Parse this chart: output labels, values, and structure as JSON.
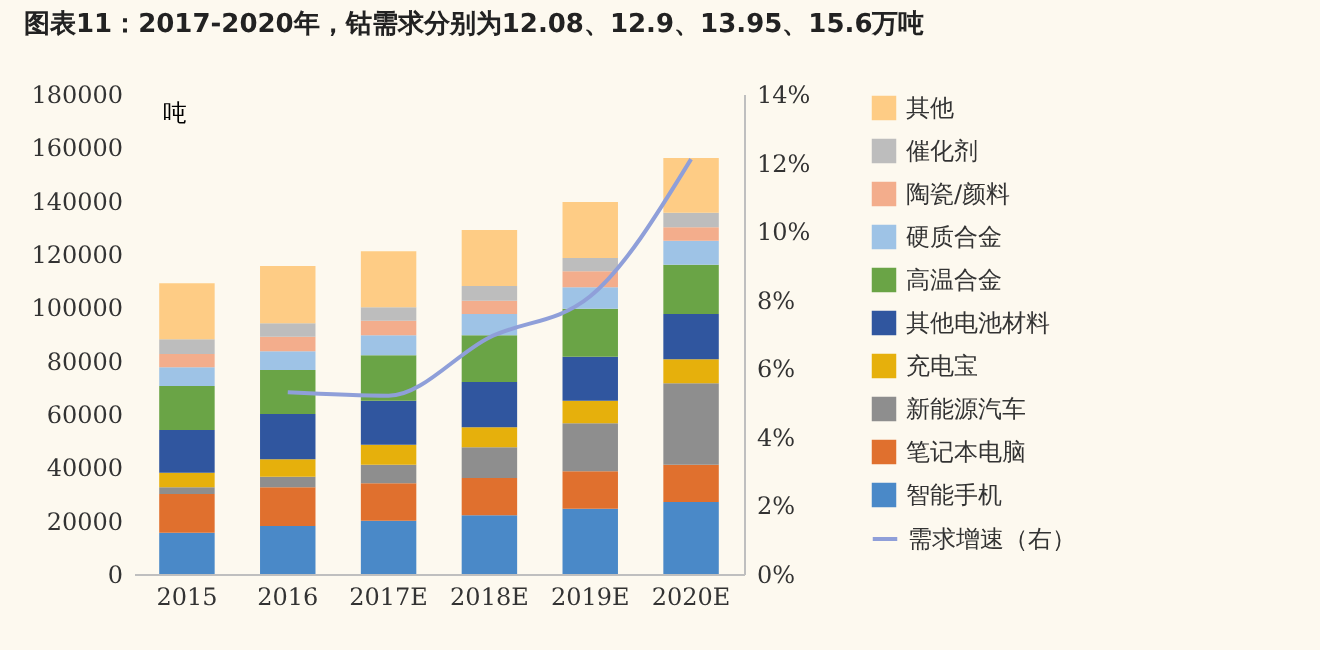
{
  "chart_data": {
    "type": "bar",
    "stacked": true,
    "title": "图表11：2017-2020年，钴需求分别为12.08、12.9、13.95、15.6万吨",
    "ylabel": "吨",
    "categories": [
      "2015",
      "2016",
      "2017E",
      "2018E",
      "2019E",
      "2020E"
    ],
    "series": [
      {
        "name": "智能手机",
        "color": "#4a89c8",
        "values": [
          15500,
          18000,
          20000,
          22000,
          24500,
          27000
        ]
      },
      {
        "name": "笔记本电脑",
        "color": "#e0702e",
        "values": [
          14500,
          14500,
          14000,
          14000,
          14000,
          14000
        ]
      },
      {
        "name": "新能源汽车",
        "color": "#8e8e8e",
        "values": [
          2500,
          4000,
          7000,
          11500,
          18000,
          30500
        ]
      },
      {
        "name": "充电宝",
        "color": "#e6b00c",
        "values": [
          5500,
          6500,
          7500,
          7500,
          8500,
          9000
        ]
      },
      {
        "name": "其他电池材料",
        "color": "#30569f",
        "values": [
          16000,
          17000,
          16500,
          17000,
          16500,
          17000
        ]
      },
      {
        "name": "高温合金",
        "color": "#6aa446",
        "values": [
          16500,
          16500,
          17000,
          17500,
          18000,
          18500
        ]
      },
      {
        "name": "硬质合金",
        "color": "#9ec3e6",
        "values": [
          7000,
          7000,
          7500,
          8000,
          8000,
          9000
        ]
      },
      {
        "name": "陶瓷/颜料",
        "color": "#f3ad8c",
        "values": [
          5000,
          5500,
          5500,
          5000,
          6000,
          5000
        ]
      },
      {
        "name": "催化剂",
        "color": "#bdbdbd",
        "values": [
          5500,
          5000,
          5000,
          5500,
          5000,
          5500
        ]
      },
      {
        "name": "其他",
        "color": "#fecc85",
        "values": [
          21000,
          21500,
          21000,
          21000,
          21000,
          20500
        ]
      },
      {
        "name": "需求增速（右）",
        "color": "#8f9fd9",
        "type": "line",
        "axis": "y2",
        "values": [
          null,
          5.3,
          5.2,
          6.9,
          8.1,
          12.1
        ]
      }
    ],
    "ylim": [
      0,
      180000
    ],
    "yticks": [
      0,
      20000,
      40000,
      60000,
      80000,
      100000,
      120000,
      140000,
      160000,
      180000
    ],
    "y2lim": [
      0,
      14
    ],
    "y2ticks": [
      {
        "value": 0,
        "label": "0%"
      },
      {
        "value": 2,
        "label": "2%"
      },
      {
        "value": 4,
        "label": "4%"
      },
      {
        "value": 6,
        "label": "6%"
      },
      {
        "value": 8,
        "label": "8%"
      },
      {
        "value": 10,
        "label": "10%"
      },
      {
        "value": 12,
        "label": "12%"
      },
      {
        "value": 14,
        "label": "14%"
      }
    ],
    "legend": "right",
    "grid": false,
    "marker": "none",
    "line_style": "solid"
  }
}
